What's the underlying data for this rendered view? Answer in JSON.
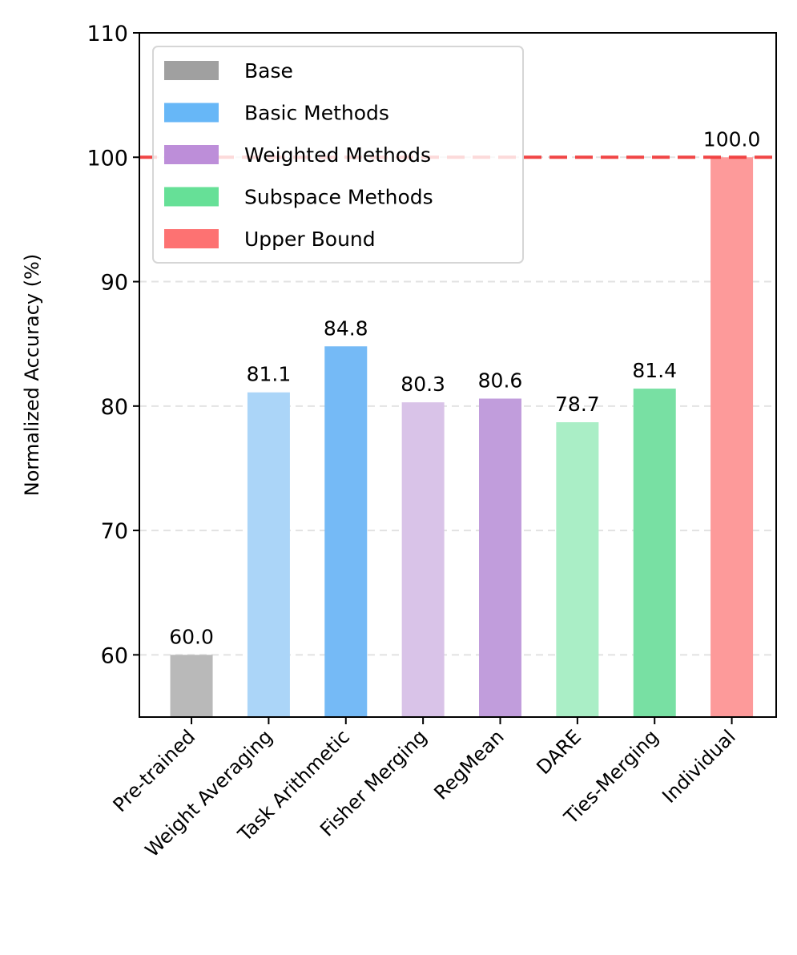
{
  "chart_data": {
    "type": "bar",
    "title": "",
    "xlabel": "",
    "ylabel": "Normalized Accuracy (%)",
    "ylim": [
      55,
      110
    ],
    "yticks": [
      60,
      70,
      80,
      90,
      100,
      110
    ],
    "grid": "horizontal dashed",
    "categories": [
      "Pre-trained",
      "Weight Averaging",
      "Task Arithmetic",
      "Fisher Merging",
      "RegMean",
      "DARE",
      "Ties-Merging",
      "Individual"
    ],
    "values": [
      60.0,
      81.1,
      84.8,
      80.3,
      80.6,
      78.7,
      81.4,
      100.0
    ],
    "value_labels": [
      "60.0",
      "81.1",
      "84.8",
      "80.3",
      "80.6",
      "78.7",
      "81.4",
      "100.0"
    ],
    "groups": [
      "Base",
      "Basic Methods",
      "Basic Methods",
      "Weighted Methods",
      "Weighted Methods",
      "Subspace Methods",
      "Subspace Methods",
      "Upper Bound"
    ],
    "bar_colors": [
      "#b9b9b9",
      "#abd5f8",
      "#75baf6",
      "#d9c3e8",
      "#c19ddc",
      "#aaeec6",
      "#78e0a3",
      "#fd9a9a"
    ],
    "reference_line": {
      "value": 100,
      "color": "#f03c3c",
      "style": "dashed"
    },
    "legend": {
      "position": "top-left",
      "entries": [
        {
          "label": "Base",
          "color": "#a0a0a0"
        },
        {
          "label": "Basic Methods",
          "color": "#67b7f7"
        },
        {
          "label": "Weighted Methods",
          "color": "#bd8ed9"
        },
        {
          "label": "Subspace Methods",
          "color": "#66e097"
        },
        {
          "label": "Upper Bound",
          "color": "#fd7272"
        }
      ]
    }
  }
}
